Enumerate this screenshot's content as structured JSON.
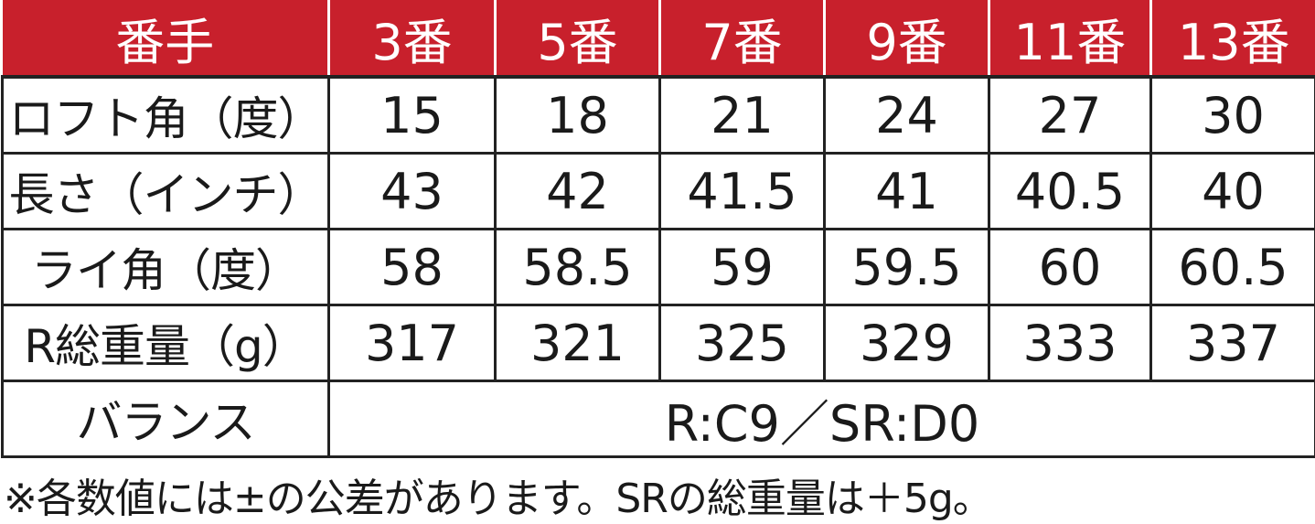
{
  "header": [
    "番手",
    "3番",
    "5番",
    "7番",
    "9番",
    "11番",
    "13番"
  ],
  "rows": [
    {
      "label": "ロフト角（度）",
      "values": [
        "15",
        "18",
        "21",
        "24",
        "27",
        "30"
      ]
    },
    {
      "label": "長さ（インチ）",
      "values": [
        "43",
        "42",
        "41.5",
        "41",
        "40.5",
        "40"
      ]
    },
    {
      "label": "ライ角（度）",
      "values": [
        "58",
        "58.5",
        "59",
        "59.5",
        "60",
        "60.5"
      ]
    },
    {
      "label": "R総重量（g）",
      "values": [
        "317",
        "321",
        "325",
        "329",
        "333",
        "337"
      ]
    }
  ],
  "balance": {
    "label": "バランス",
    "value": "R:C9／SR:D0"
  },
  "note": "※各数値には±の公差があります。SRの総重量は＋5g。",
  "colors": {
    "header_bg": "#c8202c",
    "header_text": "#ffffff",
    "border": "#222222"
  }
}
